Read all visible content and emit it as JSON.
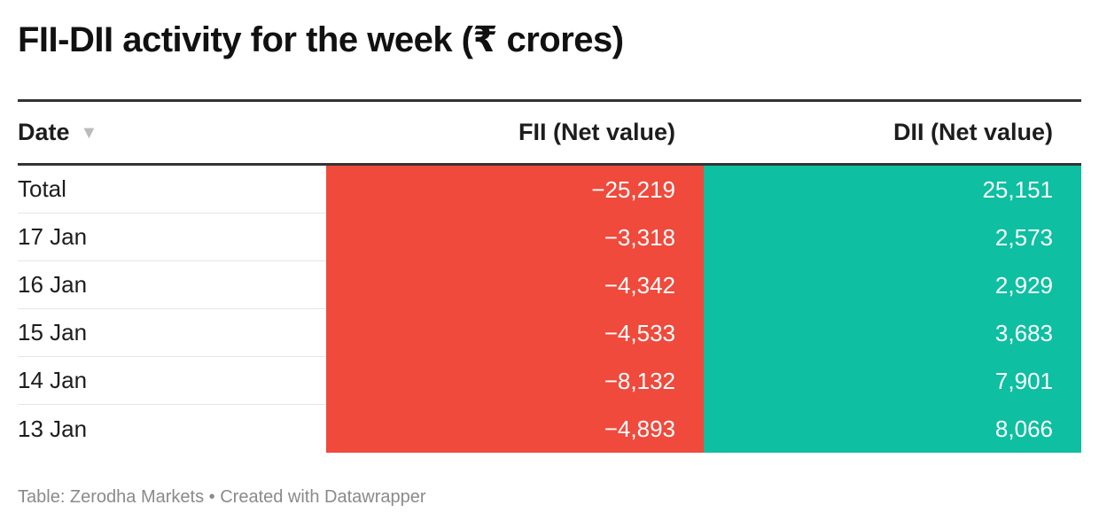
{
  "title": "FII-DII activity for the week (₹ crores)",
  "footer": "Table: Zerodha Markets • Created with Datawrapper",
  "colors": {
    "fii_negative": "#ef4a3c",
    "dii_positive": "#0ebfa1"
  },
  "table": {
    "headers": {
      "date": "Date",
      "fii": "FII (Net value)",
      "dii": "DII (Net value)"
    },
    "sort_icon": "sort-down-icon",
    "rows": [
      {
        "date": "Total",
        "fii": "−25,219",
        "dii": "25,151"
      },
      {
        "date": "17 Jan",
        "fii": "−3,318",
        "dii": "2,573"
      },
      {
        "date": "16 Jan",
        "fii": "−4,342",
        "dii": "2,929"
      },
      {
        "date": "15 Jan",
        "fii": "−4,533",
        "dii": "3,683"
      },
      {
        "date": "14 Jan",
        "fii": "−8,132",
        "dii": "7,901"
      },
      {
        "date": "13 Jan",
        "fii": "−4,893",
        "dii": "8,066"
      }
    ]
  },
  "chart_data": {
    "type": "table",
    "title": "FII-DII activity for the week (₹ crores)",
    "columns": [
      "Date",
      "FII (Net value)",
      "DII (Net value)"
    ],
    "categories": [
      "Total",
      "17 Jan",
      "16 Jan",
      "15 Jan",
      "14 Jan",
      "13 Jan"
    ],
    "series": [
      {
        "name": "FII (Net value)",
        "values": [
          -25219,
          -3318,
          -4342,
          -4533,
          -8132,
          -4893
        ]
      },
      {
        "name": "DII (Net value)",
        "values": [
          25151,
          2573,
          2929,
          3683,
          7901,
          8066
        ]
      }
    ]
  }
}
